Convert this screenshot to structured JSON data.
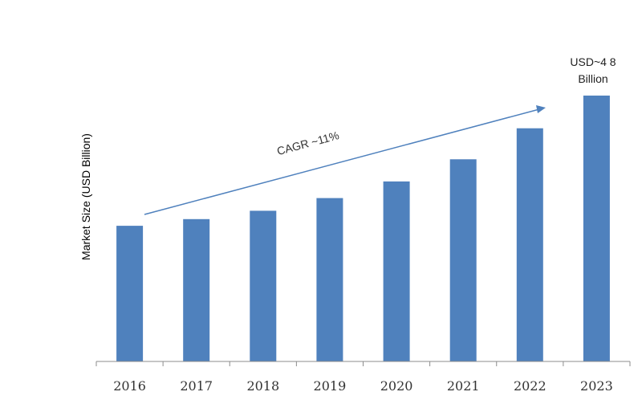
{
  "chart_data": {
    "type": "bar",
    "categories": [
      "2016",
      "2017",
      "2018",
      "2019",
      "2020",
      "2021",
      "2022",
      "2023"
    ],
    "values": [
      24.5,
      25.7,
      27.2,
      29.5,
      32.5,
      36.5,
      42.1,
      48
    ],
    "ylabel": "Market Size (USD Billion)",
    "xlabel": "",
    "ylim": [
      0,
      50
    ],
    "grid": false,
    "bar_color": "#4F81BD",
    "annotations": {
      "last_bar_label_line1": "USD~4 8",
      "last_bar_label_line2": "Billion",
      "cagr": "CAGR ~11%"
    },
    "arrow_color": "#4F81BD"
  }
}
